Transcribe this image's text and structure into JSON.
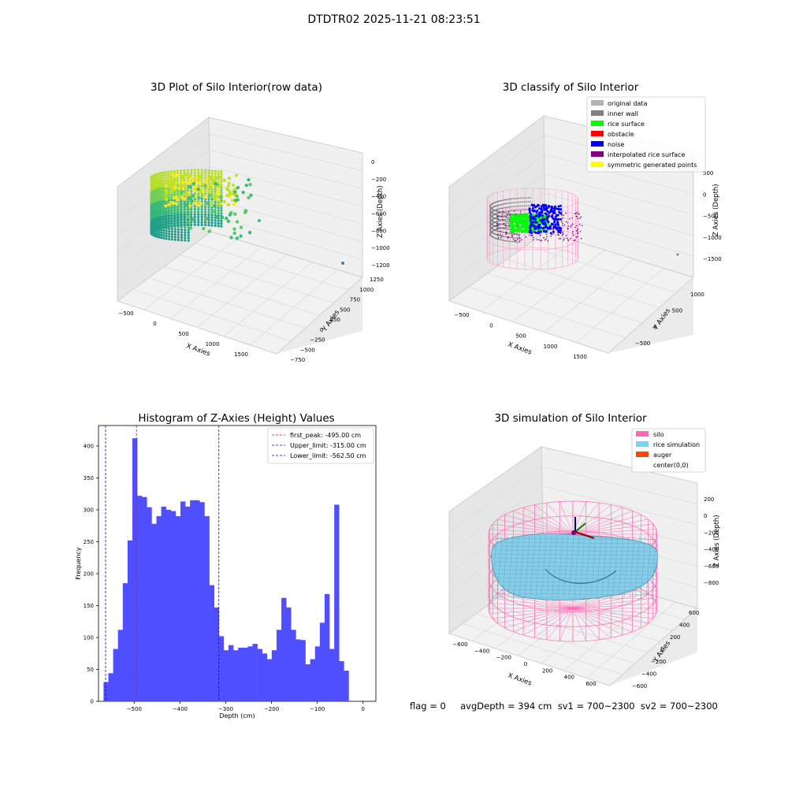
{
  "figure": {
    "suptitle": "DTDTR02 2025-11-21 08:23:51",
    "status_line": "flag = 0     avgDepth = 394 cm  sv1 = 700~2300  sv2 = 700~2300",
    "colors": {
      "histogram_bars": "#4f4fff",
      "first_peak_line": "#ff0000",
      "limit_lines": "#0000ff",
      "silo_wireframe": "#ff69b4",
      "rice_surface": "#87ceeb"
    }
  },
  "chart_data": [
    {
      "type": "scatter",
      "title": "3D Plot of Silo Interior(row data)",
      "projection": "3d",
      "xlabel": "X Axies",
      "ylabel": "Y Axies",
      "zlabel": "Z Axies (Depth)",
      "x_ticks": [
        "−500",
        "0",
        "500",
        "1000",
        "1500"
      ],
      "y_ticks": [
        "−750",
        "−500",
        "−250",
        "0",
        "250",
        "500",
        "750",
        "1000",
        "1250"
      ],
      "z_ticks": [
        "−1200",
        "−1000",
        "−800",
        "−600",
        "−400",
        "−200",
        "0"
      ],
      "colormap": "viridis"
    },
    {
      "type": "scatter",
      "title": "3D classify of Silo Interior",
      "projection": "3d",
      "xlabel": "X Axies",
      "ylabel": "Y Axies",
      "zlabel": "Z Axies (Depth)",
      "x_ticks": [
        "−500",
        "0",
        "500",
        "1000",
        "1500"
      ],
      "y_ticks": [
        "−500",
        "0",
        "500",
        "1000"
      ],
      "z_ticks": [
        "−1500",
        "−1000",
        "−500",
        "0",
        "500"
      ],
      "legend_position": "top-right",
      "legend": [
        {
          "label": "original data",
          "color": "#b3b3b3"
        },
        {
          "label": "inner wall",
          "color": "#808080"
        },
        {
          "label": "rice surface",
          "color": "#00ff00"
        },
        {
          "label": "obstacle",
          "color": "#ff0000"
        },
        {
          "label": "noise",
          "color": "#0000ff"
        },
        {
          "label": "interpolated rice surface",
          "color": "#800080"
        },
        {
          "label": "symmetric generated points",
          "color": "#ffff00"
        }
      ]
    },
    {
      "type": "bar",
      "title": "Histogram of Z-Axies (Height) Values",
      "xlabel": "Depth (cm)",
      "ylabel": "Frequency",
      "xlim": [
        -578,
        28
      ],
      "ylim": [
        0,
        432
      ],
      "x_ticks": [
        -500,
        -400,
        -300,
        -200,
        -100,
        0
      ],
      "x_tick_labels": [
        "−500",
        "−400",
        "−300",
        "−200",
        "−100",
        "0"
      ],
      "y_ticks": [
        0,
        50,
        100,
        150,
        200,
        250,
        300,
        350,
        400
      ],
      "bin_start": -567,
      "bin_width": 10.5,
      "values": [
        30,
        44,
        82,
        112,
        185,
        252,
        412,
        322,
        320,
        304,
        278,
        290,
        305,
        300,
        298,
        290,
        313,
        305,
        315,
        315,
        312,
        290,
        182,
        147,
        102,
        80,
        88,
        80,
        84,
        84,
        86,
        90,
        82,
        75,
        66,
        80,
        112,
        162,
        147,
        112,
        97,
        96,
        58,
        66,
        86,
        123,
        168,
        82,
        308,
        63,
        48
      ],
      "vlines": [
        {
          "x": -495.0,
          "label": "first_peak: -495.00 cm",
          "color": "#ff0000"
        },
        {
          "x": -315.0,
          "label": "Upper_limit: -315.00 cm",
          "color": "#0000ff"
        },
        {
          "x": -562.5,
          "label": "Lower_limit: -562.50 cm",
          "color": "#0000ff"
        }
      ],
      "legend_position": "top-right"
    },
    {
      "type": "surface",
      "title": "3D simulation of Silo Interior",
      "projection": "3d",
      "xlabel": "X Axies",
      "ylabel": "Y Axies",
      "zlabel": "Z Axies (Depth)",
      "x_ticks": [
        "−600",
        "−400",
        "−200",
        "0",
        "200",
        "400",
        "600"
      ],
      "y_ticks": [
        "−600",
        "−400",
        "−200",
        "0",
        "200",
        "400",
        "600"
      ],
      "z_ticks": [
        "−800",
        "−600",
        "−400",
        "−200",
        "0",
        "200"
      ],
      "legend_position": "top-right",
      "legend": [
        {
          "label": "silo",
          "color": "#ff69b4"
        },
        {
          "label": "rice simulation",
          "color": "#87ceeb"
        },
        {
          "label": "auger",
          "color": "#ff4500"
        },
        {
          "label": "center(0,0)",
          "color": "#ffffff"
        }
      ]
    }
  ]
}
